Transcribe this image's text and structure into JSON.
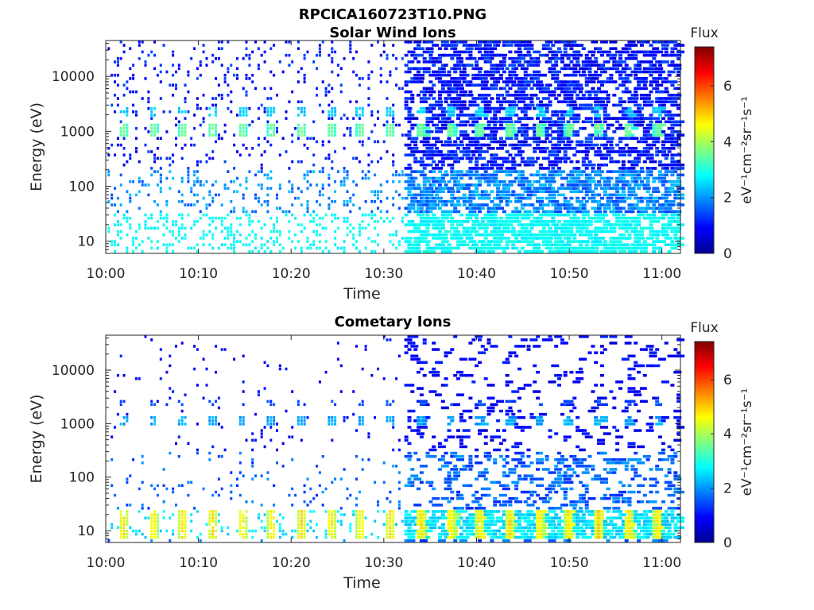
{
  "figure_title": "RPCICA160723T10.PNG",
  "colors": {
    "axis": "#262626",
    "colormap": [
      "#00008f",
      "#0000ff",
      "#0080ff",
      "#00ffff",
      "#80ff80",
      "#ffff00",
      "#ff8000",
      "#ff0000",
      "#800000"
    ]
  },
  "chart_data": [
    {
      "type": "heatmap",
      "title": "Solar Wind Ions",
      "xlabel": "Time",
      "ylabel": "Energy (eV)",
      "x_range": [
        "10:00",
        "11:02"
      ],
      "y_scale": "log",
      "y_range": [
        6,
        45000
      ],
      "x_ticks": [
        "10:00",
        "10:10",
        "10:20",
        "10:30",
        "10:40",
        "10:50",
        "11:00"
      ],
      "y_ticks": [
        "10",
        "100",
        "1000",
        "10000"
      ],
      "colorbar": {
        "title": "Flux",
        "label": "eV⁻¹cm⁻²sr⁻¹s⁻¹",
        "range": [
          0,
          7.4
        ],
        "ticks": [
          "0",
          "2",
          "4",
          "6"
        ]
      },
      "features": {
        "sweep_peak_minutes": [
          1.8,
          5.0,
          8.2,
          11.4,
          14.6,
          17.8,
          21.0,
          24.2,
          27.4,
          30.6,
          33.8,
          37.0,
          40.2,
          43.4,
          46.6,
          49.8,
          53.0,
          56.2,
          59.4
        ],
        "peak_energy_eV": 1100,
        "peak_flux": 3.6,
        "low_energy_band_flux": 2.6,
        "high_activity_from": "10:32"
      }
    },
    {
      "type": "heatmap",
      "title": "Cometary Ions",
      "xlabel": "Time",
      "ylabel": "Energy (eV)",
      "x_range": [
        "10:00",
        "11:02"
      ],
      "y_scale": "log",
      "y_range": [
        6,
        45000
      ],
      "x_ticks": [
        "10:00",
        "10:10",
        "10:20",
        "10:30",
        "10:40",
        "10:50",
        "11:00"
      ],
      "y_ticks": [
        "10",
        "100",
        "1000",
        "10000"
      ],
      "colorbar": {
        "title": "Flux",
        "label": "eV⁻¹cm⁻²sr⁻¹s⁻¹",
        "range": [
          0,
          7.4
        ],
        "ticks": [
          "0",
          "2",
          "4",
          "6"
        ]
      },
      "features": {
        "sweep_peak_minutes": [
          1.8,
          5.0,
          8.2,
          11.4,
          14.6,
          17.8,
          21.0,
          24.2,
          27.4,
          30.6,
          33.8,
          37.0,
          40.2,
          43.4,
          46.6,
          49.8,
          53.0,
          56.2,
          59.4
        ],
        "low_energy_peak_eV": 12,
        "low_energy_peak_flux": 4.8,
        "secondary_band_eV": 1100,
        "secondary_band_flux": 1.8,
        "high_activity_from": "10:32"
      }
    }
  ]
}
